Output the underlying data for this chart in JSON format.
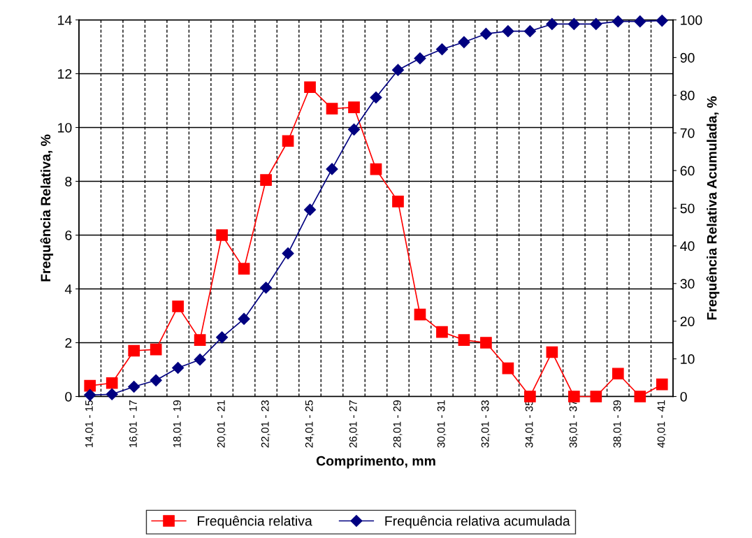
{
  "chart_data": {
    "type": "line",
    "xlabel": "Comprimento, mm",
    "ylabel": "Frequência Relativa, %",
    "y2label": "Frequência Relativa Acumulada, %",
    "categories": [
      "14,01 - 15",
      null,
      "16,01 - 17",
      null,
      "18,01 - 19",
      null,
      "20,01 - 21",
      null,
      "22,01 - 23",
      null,
      "24,01 - 25",
      null,
      "26,01 - 27",
      null,
      "28,01 - 29",
      null,
      "30,01 - 31",
      null,
      "32,01 - 33",
      null,
      "34,01 - 35",
      null,
      "36,01 - 37",
      null,
      "38,01 - 39",
      null,
      "40,01 - 41"
    ],
    "series": [
      {
        "name": "Frequência relativa",
        "color": "#ff0000",
        "marker": "square",
        "values": [
          0.4,
          0.5,
          1.7,
          1.75,
          3.35,
          2.1,
          6.0,
          4.75,
          8.05,
          9.5,
          11.5,
          10.7,
          10.75,
          8.45,
          7.25,
          3.05,
          2.4,
          2.1,
          2.0,
          1.05,
          0,
          1.65,
          0,
          0,
          0.85,
          0,
          0.45
        ]
      },
      {
        "name": "Frequência relativa acumulada",
        "color": "#000080",
        "marker": "diamond",
        "axis": "y2",
        "values": [
          0.4,
          0.6,
          2.6,
          4.3,
          7.6,
          9.8,
          15.7,
          20.6,
          28.9,
          38.0,
          49.6,
          60.4,
          70.9,
          79.4,
          86.7,
          89.8,
          92.2,
          94.1,
          96.3,
          97.0,
          97.0,
          98.9,
          98.9,
          98.9,
          99.6,
          99.6,
          99.8
        ]
      }
    ],
    "ylim": [
      0,
      14
    ],
    "yticks": [
      0,
      2,
      4,
      6,
      8,
      10,
      12,
      14
    ],
    "y2lim": [
      0,
      100
    ],
    "y2ticks": [
      0,
      10,
      20,
      30,
      40,
      50,
      60,
      70,
      80,
      90,
      100
    ],
    "grid": true,
    "legend": "bottom",
    "line_style": "solid"
  }
}
